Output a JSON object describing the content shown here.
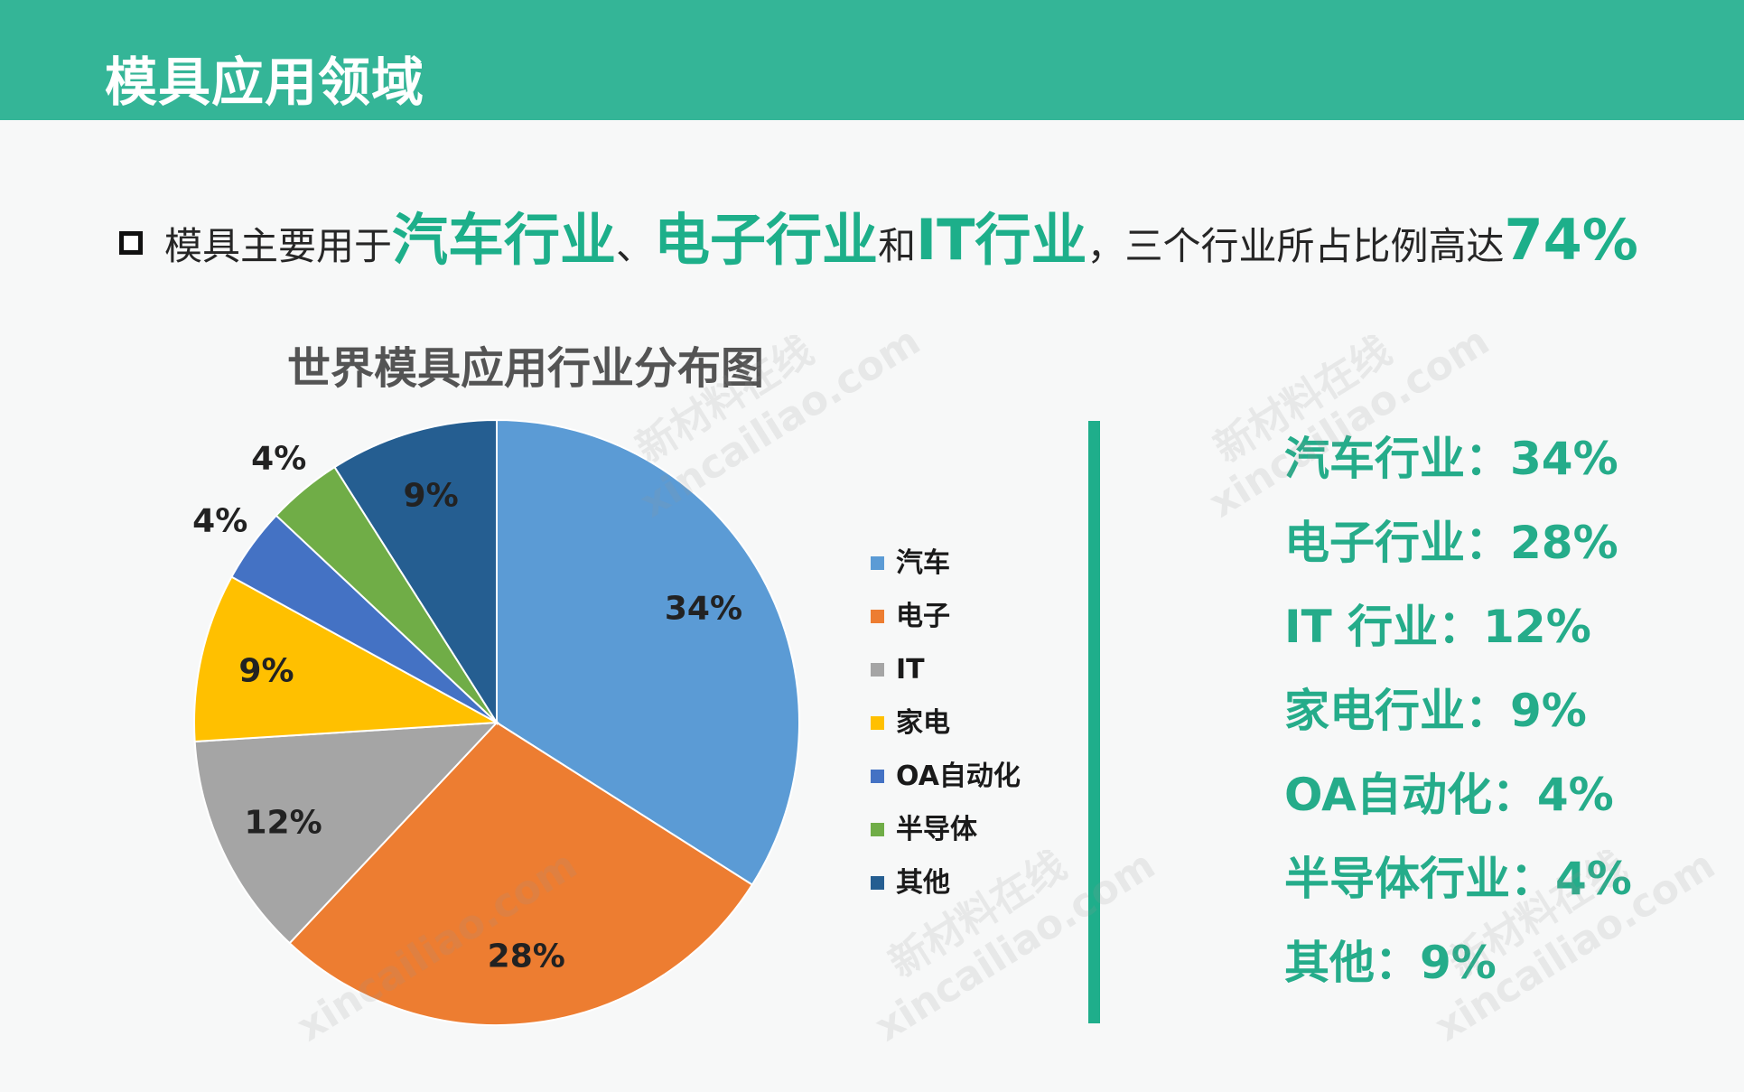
{
  "header": {
    "title": "模具应用领域"
  },
  "intro": {
    "t1": "模具主要用于",
    "h1": "汽车行业",
    "t2": "、",
    "h2": "电子行业",
    "t3": "和",
    "h3": "IT行业",
    "t4": "，三个行业所占比例高达",
    "h4": "74%"
  },
  "chart_data": {
    "type": "pie",
    "title": "世界模具应用行业分布图",
    "legend_position": "right",
    "slices": [
      {
        "label": "汽车",
        "value": 34,
        "display": "34%",
        "color": "#5b9bd5"
      },
      {
        "label": "电子",
        "value": 28,
        "display": "28%",
        "color": "#ed7d31"
      },
      {
        "label": "IT",
        "value": 12,
        "display": "12%",
        "color": "#a5a5a5"
      },
      {
        "label": "家电",
        "value": 9,
        "display": "9%",
        "color": "#ffc000"
      },
      {
        "label": "OA自动化",
        "value": 4,
        "display": "4%",
        "color": "#4472c4"
      },
      {
        "label": "半导体",
        "value": 4,
        "display": "4%",
        "color": "#70ad47"
      },
      {
        "label": "其他",
        "value": 9,
        "display": "9%",
        "color": "#255e91"
      }
    ]
  },
  "stats": [
    "汽车行业：34%",
    "电子行业：28%",
    "IT 行业：12%",
    "家电行业：9%",
    "OA自动化：4%",
    "半导体行业：4%",
    "其他：9%"
  ],
  "watermarks": [
    "新材料在线",
    "xincailiao.com"
  ],
  "colors": {
    "accent": "#34b597",
    "highlight": "#1daf8a"
  }
}
